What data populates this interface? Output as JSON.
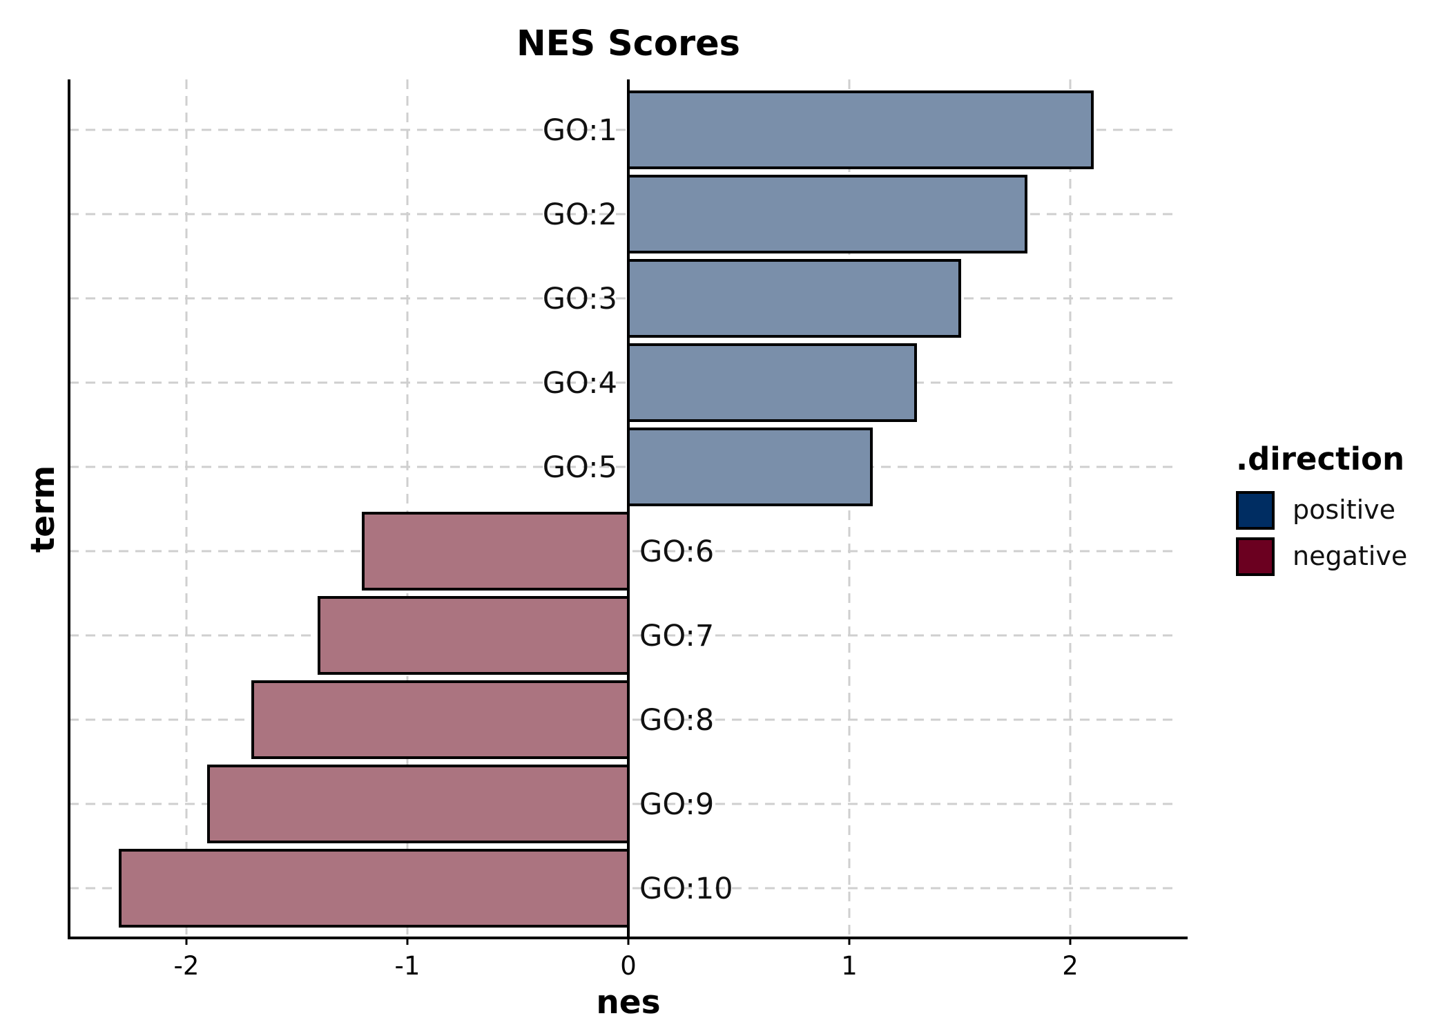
{
  "chart_data": {
    "type": "bar",
    "orientation": "horizontal",
    "title": "NES Scores",
    "xlabel": "nes",
    "ylabel": "term",
    "xlim": [
      -2.53,
      2.53
    ],
    "xticks": [
      -2,
      -1,
      0,
      1,
      2
    ],
    "xtick_labels": [
      "-2",
      "-1",
      "0",
      "1",
      "2"
    ],
    "grid": true,
    "categories": [
      "GO:1",
      "GO:2",
      "GO:3",
      "GO:4",
      "GO:5",
      "GO:6",
      "GO:7",
      "GO:8",
      "GO:9",
      "GO:10"
    ],
    "values": [
      2.1,
      1.8,
      1.5,
      1.3,
      1.1,
      -1.2,
      -1.4,
      -1.7,
      -1.9,
      -2.3
    ],
    "direction": [
      "positive",
      "positive",
      "positive",
      "positive",
      "positive",
      "negative",
      "negative",
      "negative",
      "negative",
      "negative"
    ],
    "legend": {
      "title": ".direction",
      "placement": "right",
      "entries": [
        {
          "label": "positive",
          "color": "#002D62"
        },
        {
          "label": "negative",
          "color": "#6B0020"
        }
      ]
    },
    "bar_fill": {
      "positive": "#7A8FAA",
      "negative": "#AB7480"
    }
  }
}
